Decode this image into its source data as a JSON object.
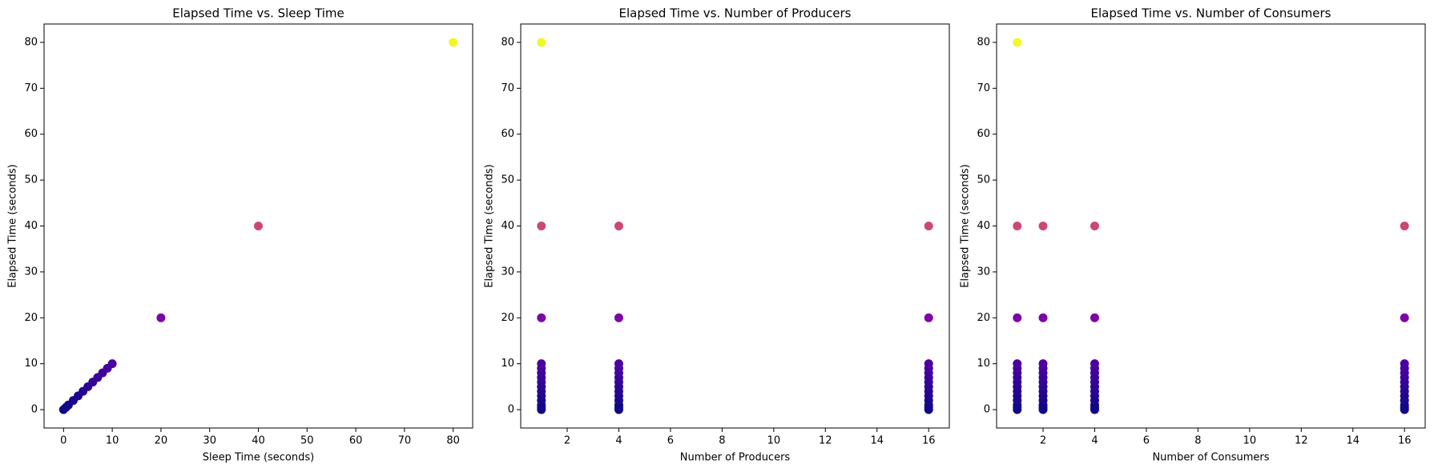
{
  "chart_data": [
    {
      "type": "scatter",
      "title": "Elapsed Time vs. Sleep Time",
      "xlabel": "Sleep Time (seconds)",
      "ylabel": "Elapsed Time (seconds)",
      "x": [
        0,
        0.5,
        1,
        2,
        3,
        4,
        5,
        6,
        7,
        8,
        9,
        10,
        20,
        40,
        80
      ],
      "values": [
        0,
        0.5,
        1,
        2,
        3,
        4,
        5,
        6,
        7,
        8,
        9,
        10,
        20,
        40,
        80
      ],
      "colors": [
        "#0d0887",
        "#100888",
        "#130789",
        "#1a078c",
        "#20068f",
        "#260591",
        "#2c0594",
        "#330497",
        "#390499",
        "#3f039c",
        "#46039f",
        "#4c02a1",
        "#7e03a8",
        "#cc4778",
        "#f0f921"
      ],
      "xlim": [
        -4,
        84
      ],
      "ylim": [
        -4,
        84
      ],
      "xticks": [
        0,
        10,
        20,
        30,
        40,
        50,
        60,
        70,
        80
      ],
      "yticks": [
        0,
        10,
        20,
        30,
        40,
        50,
        60,
        70,
        80
      ]
    },
    {
      "type": "scatter",
      "title": "Elapsed Time vs. Number of Producers",
      "xlabel": "Number of Producers",
      "ylabel": "Elapsed Time (seconds)",
      "x": [
        1,
        1,
        1,
        1,
        1,
        1,
        1,
        1,
        1,
        1,
        1,
        1,
        1,
        1,
        1,
        4,
        4,
        4,
        4,
        4,
        4,
        4,
        4,
        4,
        4,
        4,
        4,
        4,
        4,
        16,
        16,
        16,
        16,
        16,
        16,
        16,
        16,
        16,
        16,
        16,
        16,
        16,
        16
      ],
      "values": [
        0,
        0.5,
        1,
        2,
        3,
        4,
        5,
        6,
        7,
        8,
        9,
        10,
        20,
        40,
        80,
        0,
        0.5,
        1,
        2,
        3,
        4,
        5,
        6,
        7,
        8,
        9,
        10,
        20,
        40,
        0,
        0.5,
        1,
        2,
        3,
        4,
        5,
        6,
        7,
        8,
        9,
        10,
        20,
        40
      ],
      "colors": [
        "#0d0887",
        "#100888",
        "#130789",
        "#1a078c",
        "#20068f",
        "#260591",
        "#2c0594",
        "#330497",
        "#390499",
        "#3f039c",
        "#46039f",
        "#4c02a1",
        "#7e03a8",
        "#cc4778",
        "#f0f921",
        "#0d0887",
        "#100888",
        "#130789",
        "#1a078c",
        "#20068f",
        "#260591",
        "#2c0594",
        "#330497",
        "#390499",
        "#3f039c",
        "#46039f",
        "#4c02a1",
        "#7e03a8",
        "#cc4778",
        "#0d0887",
        "#100888",
        "#130789",
        "#1a078c",
        "#20068f",
        "#260591",
        "#2c0594",
        "#330497",
        "#390499",
        "#3f039c",
        "#46039f",
        "#4c02a1",
        "#7e03a8",
        "#cc4778"
      ],
      "xlim": [
        0.2,
        16.8
      ],
      "ylim": [
        -4,
        84
      ],
      "xticks": [
        2,
        4,
        6,
        8,
        10,
        12,
        14,
        16
      ],
      "yticks": [
        0,
        10,
        20,
        30,
        40,
        50,
        60,
        70,
        80
      ]
    },
    {
      "type": "scatter",
      "title": "Elapsed Time vs. Number of Consumers",
      "xlabel": "Number of Consumers",
      "ylabel": "Elapsed Time (seconds)",
      "x": [
        1,
        1,
        1,
        1,
        1,
        1,
        1,
        1,
        1,
        1,
        1,
        1,
        1,
        1,
        1,
        2,
        2,
        2,
        2,
        2,
        2,
        2,
        2,
        2,
        2,
        2,
        2,
        2,
        2,
        4,
        4,
        4,
        4,
        4,
        4,
        4,
        4,
        4,
        4,
        4,
        4,
        4,
        4,
        16,
        16,
        16,
        16,
        16,
        16,
        16,
        16,
        16,
        16,
        16,
        16,
        16,
        16
      ],
      "values": [
        0,
        0.5,
        1,
        2,
        3,
        4,
        5,
        6,
        7,
        8,
        9,
        10,
        20,
        40,
        80,
        0,
        0.5,
        1,
        2,
        3,
        4,
        5,
        6,
        7,
        8,
        9,
        10,
        20,
        40,
        0,
        0.5,
        1,
        2,
        3,
        4,
        5,
        6,
        7,
        8,
        9,
        10,
        20,
        40,
        0,
        0.5,
        1,
        2,
        3,
        4,
        5,
        6,
        7,
        8,
        9,
        10,
        20,
        40
      ],
      "colors": [
        "#0d0887",
        "#100888",
        "#130789",
        "#1a078c",
        "#20068f",
        "#260591",
        "#2c0594",
        "#330497",
        "#390499",
        "#3f039c",
        "#46039f",
        "#4c02a1",
        "#7e03a8",
        "#cc4778",
        "#f0f921",
        "#0d0887",
        "#100888",
        "#130789",
        "#1a078c",
        "#20068f",
        "#260591",
        "#2c0594",
        "#330497",
        "#390499",
        "#3f039c",
        "#46039f",
        "#4c02a1",
        "#7e03a8",
        "#cc4778",
        "#0d0887",
        "#100888",
        "#130789",
        "#1a078c",
        "#20068f",
        "#260591",
        "#2c0594",
        "#330497",
        "#390499",
        "#3f039c",
        "#46039f",
        "#4c02a1",
        "#7e03a8",
        "#cc4778",
        "#0d0887",
        "#100888",
        "#130789",
        "#1a078c",
        "#20068f",
        "#260591",
        "#2c0594",
        "#330497",
        "#390499",
        "#3f039c",
        "#46039f",
        "#4c02a1",
        "#7e03a8",
        "#cc4778"
      ],
      "xlim": [
        0.2,
        16.8
      ],
      "ylim": [
        -4,
        84
      ],
      "xticks": [
        2,
        4,
        6,
        8,
        10,
        12,
        14,
        16
      ],
      "yticks": [
        0,
        10,
        20,
        30,
        40,
        50,
        60,
        70,
        80
      ]
    }
  ]
}
